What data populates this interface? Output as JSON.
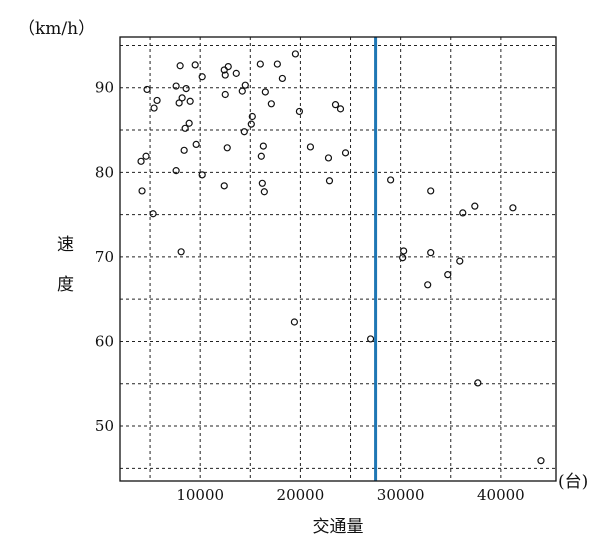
{
  "chart_data": {
    "type": "scatter",
    "y_unit_label": "（km/h）",
    "y_axis_label": "速度",
    "x_axis_label": "交通量",
    "x_unit_label": "(台)",
    "xlim": [
      2000,
      45500
    ],
    "ylim": [
      43.5,
      96
    ],
    "x_tick_values": [
      10000,
      20000,
      30000,
      40000
    ],
    "x_tick_labels": [
      "10000",
      "20000",
      "30000",
      "40000"
    ],
    "y_tick_values": [
      50,
      60,
      70,
      80,
      90
    ],
    "y_tick_labels": [
      "50",
      "60",
      "70",
      "80",
      "90"
    ],
    "x_grid": [
      5000,
      10000,
      15000,
      20000,
      25000,
      30000,
      35000,
      40000
    ],
    "y_grid": [
      45,
      50,
      55,
      60,
      65,
      70,
      75,
      80,
      85,
      90,
      95
    ],
    "grid": "dotted",
    "reference_line": {
      "x": 27500,
      "color": "#1f77b4"
    },
    "marker_color": "#111111",
    "points": [
      [
        4700,
        89.8
      ],
      [
        5400,
        87.6
      ],
      [
        5700,
        88.5
      ],
      [
        4100,
        81.3
      ],
      [
        4600,
        81.9
      ],
      [
        4200,
        77.8
      ],
      [
        5300,
        75.1
      ],
      [
        7600,
        90.2
      ],
      [
        7900,
        88.2
      ],
      [
        8000,
        92.6
      ],
      [
        8200,
        88.8
      ],
      [
        8600,
        89.9
      ],
      [
        8500,
        85.2
      ],
      [
        8900,
        85.8
      ],
      [
        9000,
        88.4
      ],
      [
        8400,
        82.6
      ],
      [
        9500,
        92.7
      ],
      [
        9600,
        83.3
      ],
      [
        10200,
        91.3
      ],
      [
        10200,
        79.7
      ],
      [
        7600,
        80.2
      ],
      [
        8100,
        70.6
      ],
      [
        12400,
        92.1
      ],
      [
        12800,
        92.5
      ],
      [
        12500,
        91.5
      ],
      [
        13600,
        91.7
      ],
      [
        12500,
        89.2
      ],
      [
        14200,
        89.6
      ],
      [
        14500,
        90.3
      ],
      [
        15100,
        85.7
      ],
      [
        14400,
        84.8
      ],
      [
        15200,
        86.6
      ],
      [
        12700,
        82.9
      ],
      [
        12400,
        78.4
      ],
      [
        16000,
        92.8
      ],
      [
        17700,
        92.8
      ],
      [
        16500,
        89.5
      ],
      [
        17100,
        88.1
      ],
      [
        18200,
        91.1
      ],
      [
        19500,
        94.0
      ],
      [
        19900,
        87.2
      ],
      [
        16300,
        83.1
      ],
      [
        16100,
        81.9
      ],
      [
        16200,
        78.7
      ],
      [
        16400,
        77.7
      ],
      [
        21000,
        83.0
      ],
      [
        22800,
        81.7
      ],
      [
        22900,
        79.0
      ],
      [
        23500,
        88.0
      ],
      [
        24000,
        87.5
      ],
      [
        24500,
        82.3
      ],
      [
        19400,
        62.3
      ],
      [
        27000,
        60.3
      ],
      [
        29000,
        79.1
      ],
      [
        30300,
        70.7
      ],
      [
        30200,
        69.9
      ],
      [
        32700,
        66.7
      ],
      [
        33000,
        77.8
      ],
      [
        33000,
        70.5
      ],
      [
        34700,
        67.9
      ],
      [
        35900,
        69.5
      ],
      [
        36200,
        75.2
      ],
      [
        37400,
        76.0
      ],
      [
        37700,
        55.1
      ],
      [
        41200,
        75.8
      ],
      [
        44000,
        45.9
      ]
    ]
  }
}
